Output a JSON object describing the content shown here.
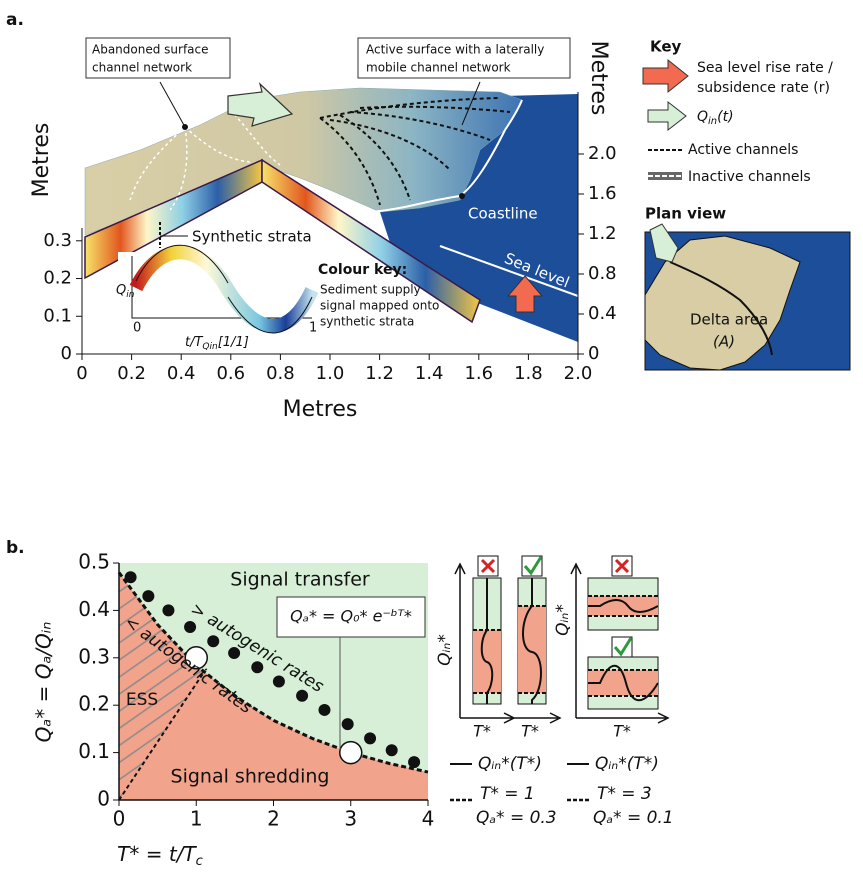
{
  "chart_data": [
    {
      "type": "map",
      "panel_label": "a.",
      "xlabel": "Metres",
      "ylabel": "Metres",
      "y2label": "Metres",
      "xlim": [
        0,
        2.0
      ],
      "xticks": [
        0,
        0.2,
        0.4,
        0.6,
        0.8,
        {
          "value": 1,
          "label": "1.0"
        },
        1.2,
        1.4,
        1.6,
        1.8,
        {
          "value": 2,
          "label": "2.0"
        }
      ],
      "ylim": [
        0,
        0.53
      ],
      "yticks": [
        0,
        0.1,
        0.2,
        0.3
      ],
      "y2lim": [
        0,
        2.0
      ],
      "y2ticks": [
        0,
        0.4,
        0.8,
        1.2,
        1.6,
        {
          "value": 2,
          "label": "2.0"
        }
      ],
      "annotations": {
        "abandoned": [
          "Abandoned surface",
          "channel network"
        ],
        "active": [
          "Active surface with a laterally",
          "mobile channel network"
        ],
        "strata": "Synthetic strata",
        "coastline": "Coastline",
        "sea_level": "Sea level"
      },
      "colour_key": {
        "title": "Colour key:",
        "lines": [
          "Sediment supply",
          "signal mapped onto",
          "synthetic strata"
        ],
        "ylabel": "Q",
        "ylabel_sub": "in",
        "tick_start": "0",
        "tick_end": "1",
        "xlabel": "t/T",
        "xlabel_sub": "Qin",
        "xlabel_tail": "[1/1]"
      },
      "key": {
        "title": "Key",
        "sea": [
          "Sea level rise rate /",
          "subsidence rate (r)"
        ],
        "qin": "Q",
        "qin_sub": "in",
        "qin_tail": "(t)",
        "active": "Active channels",
        "inactive": "Inactive channels"
      },
      "plan_view": {
        "title": "Plan view",
        "area": [
          "Delta area",
          "(A)"
        ]
      }
    },
    {
      "type": "scatter",
      "panel_label": "b.",
      "xlabel": "T* = t/T",
      "xlabel_sub": "c",
      "ylabel": "Qₐ* = Qₐ/Qᵢₙ",
      "xlim": [
        0,
        4
      ],
      "xticks": [
        0,
        1,
        2,
        3,
        4
      ],
      "ylim": [
        0,
        0.5
      ],
      "yticks": [
        0,
        0.1,
        0.2,
        0.3,
        0.4,
        0.5
      ],
      "points": {
        "x": [
          0.15,
          0.38,
          0.64,
          0.92,
          1.22,
          1.49,
          1.79,
          2.07,
          2.37,
          2.66,
          2.96,
          3.25,
          3.53,
          3.82
        ],
        "values": [
          0.47,
          0.43,
          0.4,
          0.365,
          0.335,
          0.31,
          0.28,
          0.25,
          0.22,
          0.19,
          0.16,
          0.13,
          0.105,
          0.08
        ]
      },
      "boundary": {
        "x": [
          0,
          0.5,
          1,
          1.5,
          2,
          2.5,
          3,
          3.5,
          4
        ],
        "values": [
          0.48,
          0.37,
          0.284,
          0.219,
          0.168,
          0.13,
          0.1,
          0.077,
          0.059
        ]
      },
      "ess_line": {
        "x": [
          0,
          1.1
        ],
        "values": [
          0,
          0.27
        ]
      },
      "highlight": {
        "x": [
          1,
          3
        ],
        "values": [
          0.3,
          0.1
        ]
      },
      "labels": {
        "transfer": "Signal transfer",
        "shredding": "Signal shredding",
        "ess": "ESS",
        "above": "> autogenic rates",
        "below": "< autogenic rates",
        "formula": "Qₐ* = Q₀* e⁻ᵇᵀ*"
      },
      "mini": {
        "ylabel": "Qᵢₙ*",
        "xlabel": "T*"
      },
      "legend": {
        "signal": "Qᵢₙ*(T*)",
        "case1": [
          "T* = 1",
          "Qₐ* = 0.3"
        ],
        "case3": [
          "T* = 3",
          "Qₐ* = 0.1"
        ]
      }
    }
  ]
}
